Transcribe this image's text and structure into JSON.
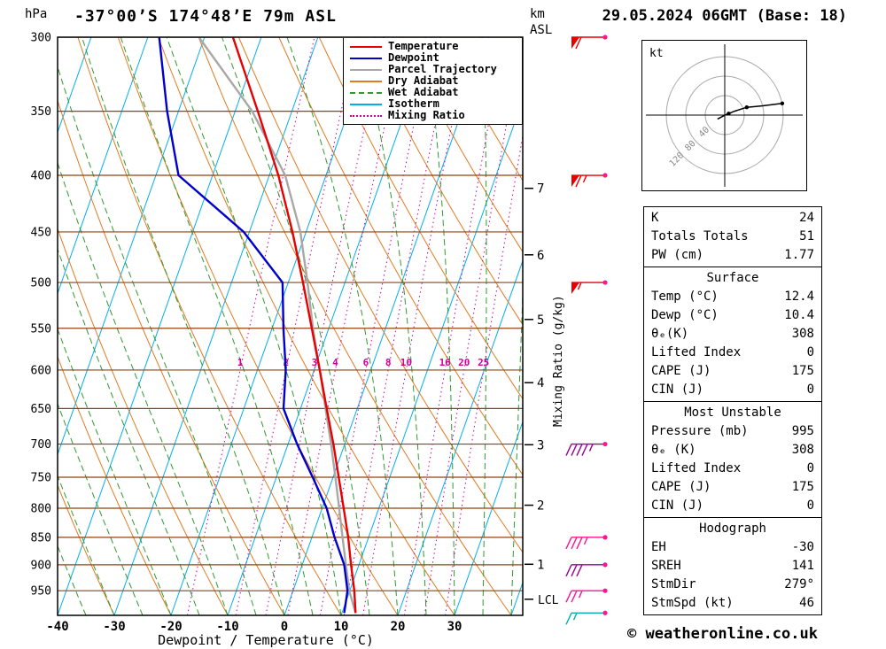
{
  "header": {
    "pressure_unit": "hPa",
    "station": "-37°00’S 174°48’E 79m ASL",
    "datetime": "29.05.2024 06GMT (Base: 18)",
    "altitude_axis_top": "km",
    "altitude_axis_bottom": "ASL"
  },
  "axes": {
    "pressure_ticks": [
      300,
      350,
      400,
      450,
      500,
      550,
      600,
      650,
      700,
      750,
      800,
      850,
      900,
      950
    ],
    "temp_ticks": [
      -40,
      -30,
      -20,
      -10,
      0,
      10,
      20,
      30
    ],
    "xlabel": "Dewpoint / Temperature (°C)",
    "mixing_ratio_axis_label": "Mixing Ratio (g/kg)",
    "km_ticks": [
      {
        "km": 1,
        "p": 899
      },
      {
        "km": 2,
        "p": 795
      },
      {
        "km": 3,
        "p": 701
      },
      {
        "km": 4,
        "p": 616
      },
      {
        "km": 5,
        "p": 540
      },
      {
        "km": 6,
        "p": 472
      },
      {
        "km": 7,
        "p": 411
      }
    ],
    "lcl": {
      "label": "LCL",
      "p": 967
    }
  },
  "legend": {
    "items": [
      {
        "label": "Temperature",
        "color": "#e60000",
        "style": "solid"
      },
      {
        "label": "Dewpoint",
        "color": "#0000cd",
        "style": "solid"
      },
      {
        "label": "Parcel Trajectory",
        "color": "#a8a8a8",
        "style": "solid"
      },
      {
        "label": "Dry Adiabat",
        "color": "#e07b20",
        "style": "solid"
      },
      {
        "label": "Wet Adiabat",
        "color": "#2e9b2e",
        "style": "dashed"
      },
      {
        "label": "Isotherm",
        "color": "#00aeef",
        "style": "solid"
      },
      {
        "label": "Mixing Ratio",
        "color": "#cc0099",
        "style": "dotted"
      }
    ]
  },
  "chart_data": {
    "type": "line",
    "title": "-37°00’S 174°48’E 79m ASL — Skew-T log-P sounding",
    "xlabel": "Dewpoint / Temperature (°C)",
    "ylabel": "hPa",
    "x_range": [
      -40,
      40
    ],
    "pressure_range": [
      300,
      1000
    ],
    "isotherm_step": 10,
    "dry_adiabat_step": 10,
    "wet_adiabat_step": 5,
    "mixing_ratio_lines": [
      1,
      2,
      3,
      4,
      6,
      8,
      10,
      16,
      20,
      25
    ],
    "series": [
      {
        "name": "Parcel Trajectory",
        "color": "#a8a8a8",
        "points": [
          [
            995,
            12.4
          ],
          [
            950,
            9.9
          ],
          [
            900,
            7.7
          ],
          [
            850,
            5.4
          ],
          [
            800,
            3.0
          ],
          [
            750,
            0.4
          ],
          [
            700,
            -2.4
          ],
          [
            650,
            -5.6
          ],
          [
            600,
            -9.0
          ],
          [
            550,
            -12.8
          ],
          [
            500,
            -16.6
          ],
          [
            450,
            -21.0
          ],
          [
            400,
            -27.2
          ],
          [
            350,
            -37.0
          ],
          [
            300,
            -51.0
          ]
        ]
      },
      {
        "name": "Temperature",
        "color": "#e60000",
        "points": [
          [
            995,
            12.4
          ],
          [
            950,
            10.8
          ],
          [
            900,
            8.6
          ],
          [
            850,
            6.4
          ],
          [
            800,
            3.8
          ],
          [
            750,
            1.0
          ],
          [
            700,
            -2.0
          ],
          [
            650,
            -5.4
          ],
          [
            600,
            -9.0
          ],
          [
            550,
            -13.0
          ],
          [
            500,
            -17.4
          ],
          [
            450,
            -22.4
          ],
          [
            400,
            -28.4
          ],
          [
            350,
            -36.0
          ],
          [
            300,
            -45.0
          ]
        ]
      },
      {
        "name": "Dewpoint",
        "color": "#0000cd",
        "points": [
          [
            995,
            10.4
          ],
          [
            950,
            9.6
          ],
          [
            900,
            7.4
          ],
          [
            850,
            4.0
          ],
          [
            800,
            0.8
          ],
          [
            750,
            -3.6
          ],
          [
            700,
            -8.4
          ],
          [
            650,
            -13.0
          ],
          [
            600,
            -15.0
          ],
          [
            550,
            -18.0
          ],
          [
            500,
            -21.0
          ],
          [
            450,
            -31.0
          ],
          [
            400,
            -46.0
          ],
          [
            350,
            -52.0
          ],
          [
            300,
            -58.0
          ]
        ]
      }
    ],
    "wind_barbs": [
      {
        "p": 300,
        "speed_kt": 60,
        "color": "#e60000"
      },
      {
        "p": 400,
        "speed_kt": 65,
        "color": "#e60000"
      },
      {
        "p": 500,
        "speed_kt": 55,
        "color": "#e60000"
      },
      {
        "p": 700,
        "speed_kt": 45,
        "color": "#990099"
      },
      {
        "p": 850,
        "speed_kt": 35,
        "color": "#ff1493"
      },
      {
        "p": 900,
        "speed_kt": 30,
        "color": "#990099"
      },
      {
        "p": 950,
        "speed_kt": 25,
        "color": "#ff1493"
      },
      {
        "p": 995,
        "speed_kt": 15,
        "color": "#00b2b2"
      }
    ],
    "hodograph": {
      "unit_label": "kt",
      "rings_kt": [
        40,
        80,
        120
      ],
      "trace": [
        [
          -15,
          -8
        ],
        [
          -3,
          -2
        ],
        [
          0,
          0
        ],
        [
          8,
          3
        ],
        [
          20,
          8
        ],
        [
          45,
          16
        ],
        [
          78,
          19
        ],
        [
          118,
          24
        ]
      ],
      "dots": [
        [
          8,
          3
        ],
        [
          45,
          16
        ],
        [
          118,
          24
        ]
      ]
    }
  },
  "stats": {
    "sections": [
      {
        "rows": [
          [
            "K",
            "24"
          ],
          [
            "Totals Totals",
            "51"
          ],
          [
            "PW (cm)",
            "1.77"
          ]
        ]
      },
      {
        "title": "Surface",
        "rows": [
          [
            "Temp (°C)",
            "12.4"
          ],
          [
            "Dewp (°C)",
            "10.4"
          ],
          [
            "θₑ(K)",
            "308"
          ],
          [
            "Lifted Index",
            "0"
          ],
          [
            "CAPE (J)",
            "175"
          ],
          [
            "CIN (J)",
            "0"
          ]
        ]
      },
      {
        "title": "Most Unstable",
        "rows": [
          [
            "Pressure (mb)",
            "995"
          ],
          [
            "θₑ (K)",
            "308"
          ],
          [
            "Lifted Index",
            "0"
          ],
          [
            "CAPE (J)",
            "175"
          ],
          [
            "CIN (J)",
            "0"
          ]
        ]
      },
      {
        "title": "Hodograph",
        "rows": [
          [
            "EH",
            "-30"
          ],
          [
            "SREH",
            "141"
          ],
          [
            "StmDir",
            "279°"
          ],
          [
            "StmSpd (kt)",
            "46"
          ]
        ]
      }
    ]
  },
  "footer": {
    "copyright": "© weatheronline.co.uk"
  },
  "colors": {
    "isotherm": "#00aeef",
    "dry_adiabat": "#e07b20",
    "wet_adiabat": "#2e9b2e",
    "mixing_ratio": "#cc0099",
    "pressure_line": "#8b4513",
    "temperature": "#e60000",
    "dewpoint": "#0000cd",
    "parcel": "#a8a8a8",
    "barb_dot": "#ff1493",
    "frame": "#000000"
  }
}
